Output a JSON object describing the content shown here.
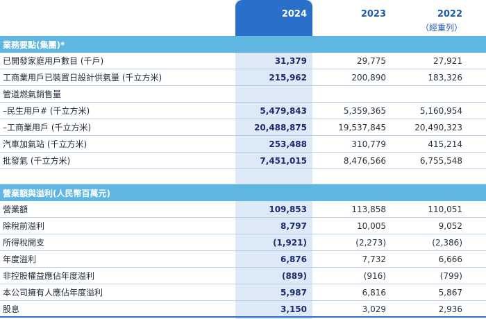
{
  "header": {
    "col2024": "2024",
    "col2023": "2023",
    "col2022": "2022",
    "col2022_sub": "（經重列）"
  },
  "section1": {
    "title": "業務要點(集團)*",
    "rows": [
      {
        "label": "已開發家庭用戶數目 (千戶)",
        "v2024": "31,379",
        "v2023": "29,775",
        "v2022": "27,921"
      },
      {
        "label": "工商業用戶已裝置日設計供氣量 (千立方米)",
        "v2024": "215,962",
        "v2023": "200,890",
        "v2022": "183,326"
      },
      {
        "label": "管道燃氣銷售量",
        "v2024": "",
        "v2023": "",
        "v2022": ""
      },
      {
        "label": "–民生用戶# (千立方米)",
        "v2024": "5,479,843",
        "v2023": "5,359,365",
        "v2022": "5,160,954"
      },
      {
        "label": "–工商業用戶 (千立方米)",
        "v2024": "20,488,875",
        "v2023": "19,537,845",
        "v2022": "20,490,323"
      },
      {
        "label": "汽車加氣站 (千立方米)",
        "v2024": "253,488",
        "v2023": "310,779",
        "v2022": "415,214"
      },
      {
        "label": "批發氣 (千立方米)",
        "v2024": "7,451,015",
        "v2023": "8,476,566",
        "v2022": "6,755,548"
      }
    ]
  },
  "section2": {
    "title": "營業額與溢利(人民幣百萬元)",
    "rows": [
      {
        "label": "營業額",
        "v2024": "109,853",
        "v2023": "113,858",
        "v2022": "110,051"
      },
      {
        "label": "除稅前溢利",
        "v2024": "8,797",
        "v2023": "10,005",
        "v2022": "9,052"
      },
      {
        "label": "所得稅開支",
        "v2024": "(1,921)",
        "v2023": "(2,273)",
        "v2022": "(2,386)"
      },
      {
        "label": "年度溢利",
        "v2024": "6,876",
        "v2023": "7,732",
        "v2022": "6,666"
      },
      {
        "label": "非控股權益應佔年度溢利",
        "v2024": "(889)",
        "v2023": "(916)",
        "v2022": "(799)"
      },
      {
        "label": "本公司擁有人應佔年度溢利",
        "v2024": "5,987",
        "v2023": "6,816",
        "v2022": "5,867"
      },
      {
        "label": "股息",
        "v2024": "3,150",
        "v2023": "3,029",
        "v2022": "2,936"
      }
    ]
  }
}
